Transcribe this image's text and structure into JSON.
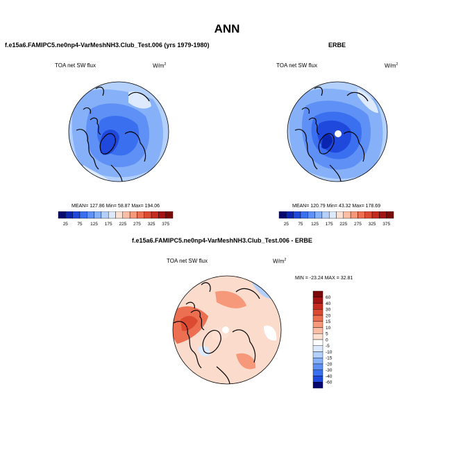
{
  "main_title": "ANN",
  "panels": {
    "model": {
      "title": "f.e15a6.FAMIPC5.ne0np4-VarMeshNH3.Club_Test.006 (yrs 1979-1980)",
      "variable": "TOA net SW flux",
      "units_base": "W/m",
      "units_exp": "2",
      "stats": "MEAN= 127.86  Min=  58.87  Max= 194.06"
    },
    "obs": {
      "title": "ERBE",
      "variable": "TOA net SW flux",
      "units_base": "W/m",
      "units_exp": "2",
      "stats": "MEAN= 120.79  Min=  43.32  Max= 178.69"
    },
    "diff": {
      "title": "f.e15a6.FAMIPC5.ne0np4-VarMeshNH3.Club_Test.006 - ERBE",
      "variable": "TOA net SW flux",
      "units_base": "W/m",
      "units_exp": "2",
      "stats": "MIN = -23.24  MAX =  32.81"
    }
  },
  "chart_data": [
    {
      "type": "heatmap",
      "projection": "north-polar-stereographic",
      "title": "f.e15a6.FAMIPC5.ne0np4-VarMeshNH3.Club_Test.006 (yrs 1979-1980)",
      "variable": "TOA net SW flux",
      "units": "W/m2",
      "mean": 127.86,
      "min": 58.87,
      "max": 194.06,
      "colorbar": {
        "orientation": "horizontal",
        "tick_labels": [
          "25",
          "75",
          "125",
          "175",
          "225",
          "275",
          "325",
          "375"
        ],
        "colors": [
          "#06066e",
          "#0a26b0",
          "#1f48dc",
          "#3a6ff0",
          "#5e90f5",
          "#86b1f9",
          "#b3d0fc",
          "#ddeafe",
          "#fde0d2",
          "#fbbda4",
          "#f6987a",
          "#ec6f52",
          "#dc4a32",
          "#c52b1e",
          "#a51414",
          "#7a0a0a"
        ]
      }
    },
    {
      "type": "heatmap",
      "projection": "north-polar-stereographic",
      "title": "ERBE",
      "variable": "TOA net SW flux",
      "units": "W/m2",
      "mean": 120.79,
      "min": 43.32,
      "max": 178.69,
      "colorbar": {
        "orientation": "horizontal",
        "tick_labels": [
          "25",
          "75",
          "125",
          "175",
          "225",
          "275",
          "325",
          "375"
        ],
        "colors": [
          "#06066e",
          "#0a26b0",
          "#1f48dc",
          "#3a6ff0",
          "#5e90f5",
          "#86b1f9",
          "#b3d0fc",
          "#ddeafe",
          "#fde0d2",
          "#fbbda4",
          "#f6987a",
          "#ec6f52",
          "#dc4a32",
          "#c52b1e",
          "#a51414",
          "#7a0a0a"
        ]
      }
    },
    {
      "type": "heatmap",
      "projection": "north-polar-stereographic",
      "title": "f.e15a6.FAMIPC5.ne0np4-VarMeshNH3.Club_Test.006 - ERBE",
      "variable": "TOA net SW flux",
      "units": "W/m2",
      "min": -23.24,
      "max": 32.81,
      "colorbar": {
        "orientation": "vertical",
        "tick_labels": [
          "60",
          "40",
          "30",
          "20",
          "15",
          "10",
          "5",
          "0",
          "-5",
          "-10",
          "-15",
          "-20",
          "-30",
          "-40",
          "-60"
        ],
        "colors": [
          "#7a0a0a",
          "#a51414",
          "#c52b1e",
          "#dc4a32",
          "#ec6f52",
          "#f6987a",
          "#fbbda4",
          "#fde0d2",
          "#ffffff",
          "#ddeafe",
          "#b3d0fc",
          "#86b1f9",
          "#5e90f5",
          "#3a6ff0",
          "#1f48dc",
          "#06066e"
        ]
      }
    }
  ]
}
